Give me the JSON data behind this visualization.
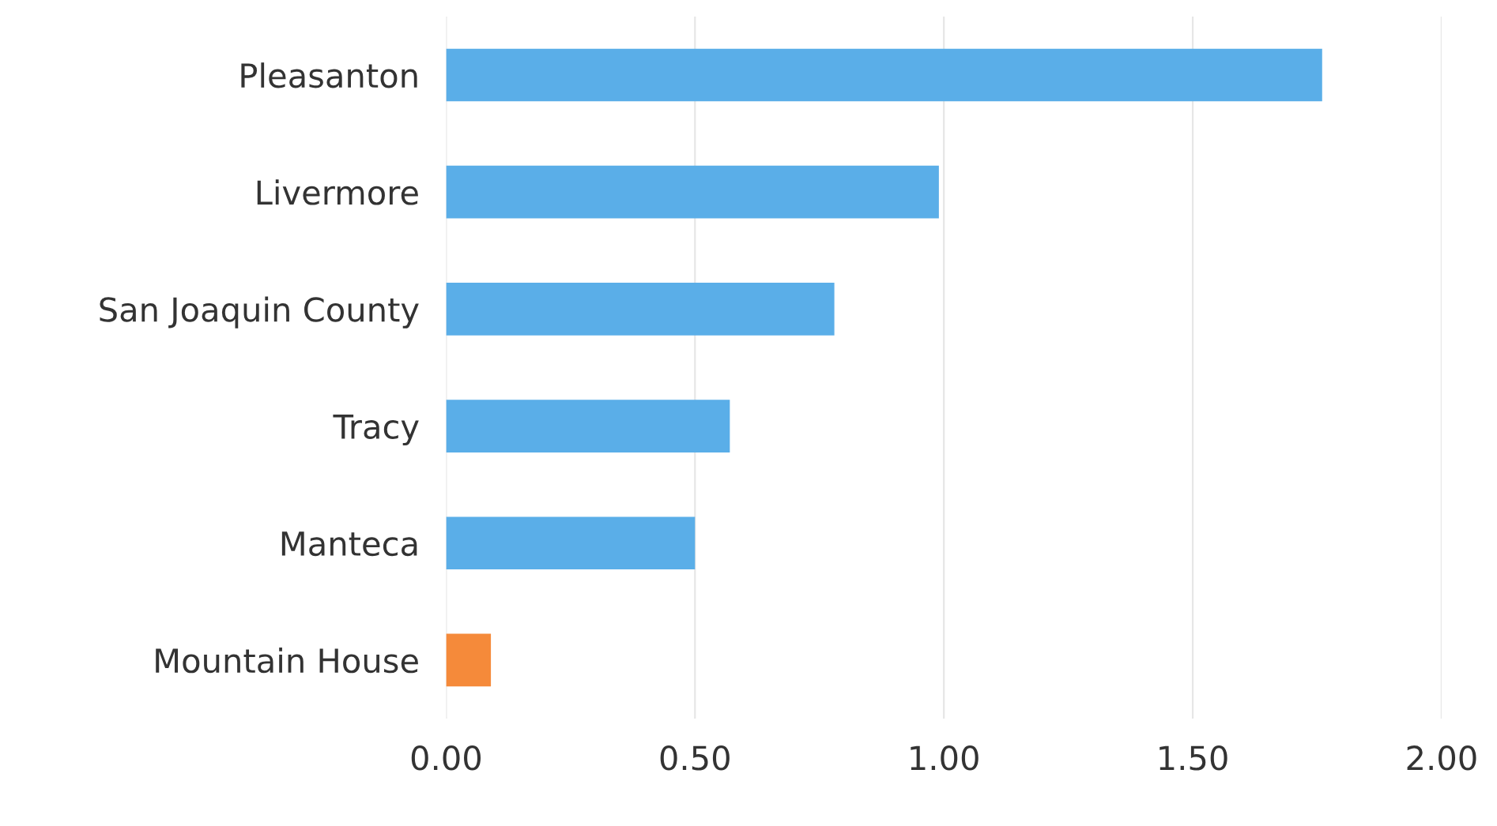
{
  "chart_data": {
    "type": "bar",
    "orientation": "horizontal",
    "categories": [
      "Pleasanton",
      "Livermore",
      "San Joaquin County",
      "Tracy",
      "Manteca",
      "Mountain House"
    ],
    "values": [
      1.76,
      0.99,
      0.78,
      0.57,
      0.5,
      0.09
    ],
    "colors": [
      "#5aaee8",
      "#5aaee8",
      "#5aaee8",
      "#5aaee8",
      "#5aaee8",
      "#f58a3a"
    ],
    "xlim": [
      0,
      2
    ],
    "xticks": [
      {
        "value": 0,
        "label": "0.00"
      },
      {
        "value": 0.5,
        "label": "0.50"
      },
      {
        "value": 1,
        "label": "1.00"
      },
      {
        "value": 1.5,
        "label": "1.50"
      },
      {
        "value": 2,
        "label": "2.00"
      }
    ],
    "grid": "x"
  }
}
